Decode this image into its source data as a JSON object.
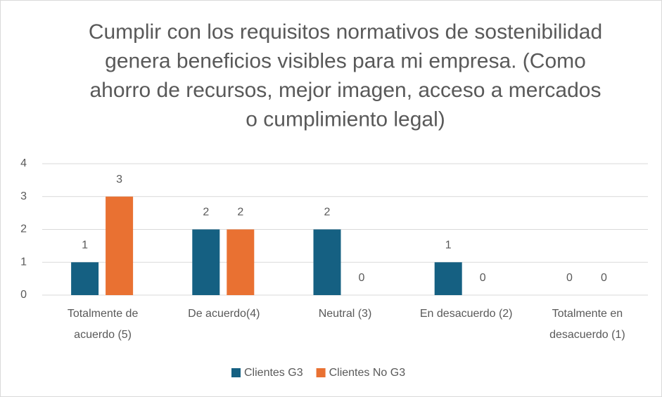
{
  "chart_data": {
    "type": "bar",
    "title": "Cumplir con los requisitos normativos de sostenibilidad genera beneficios visibles para mi empresa. (Como ahorro de recursos, mejor imagen, acceso a mercados o cumplimiento legal)",
    "categories": [
      "Totalmente de acuerdo (5)",
      "De acuerdo(4)",
      "Neutral (3)",
      "En desacuerdo (2)",
      "Totalmente en desacuerdo (1)"
    ],
    "series": [
      {
        "name": "Clientes G3",
        "color": "#156082",
        "values": [
          1,
          2,
          2,
          1,
          0
        ]
      },
      {
        "name": "Clientes No G3",
        "color": "#e97132",
        "values": [
          3,
          2,
          0,
          0,
          0
        ]
      }
    ],
    "ylim": [
      0,
      4
    ],
    "yticks": [
      0,
      1,
      2,
      3,
      4
    ],
    "grid": true,
    "legend": "bottom"
  }
}
